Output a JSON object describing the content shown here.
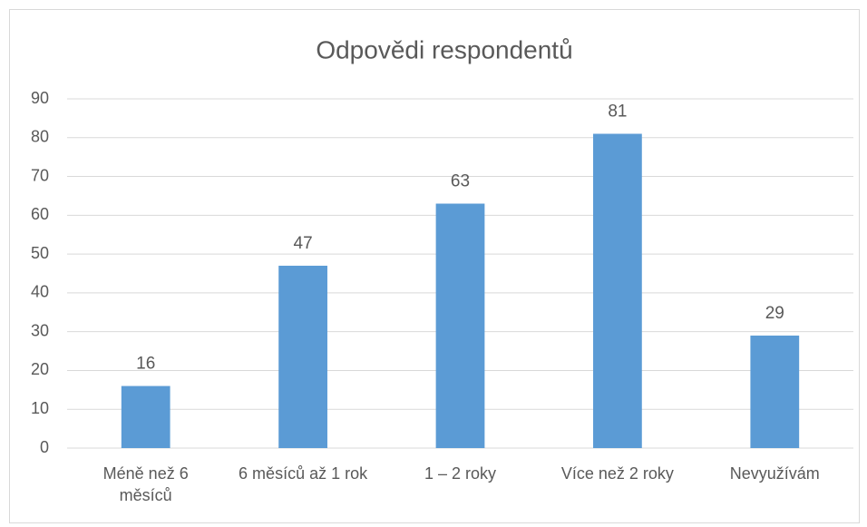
{
  "chart_data": {
    "type": "bar",
    "title": "Odpovědi respondentů",
    "categories": [
      "Méně než 6 měsíců",
      "6 měsíců až 1 rok",
      "1 – 2 roky",
      "Více než 2 roky",
      "Nevyužívám"
    ],
    "values": [
      16,
      47,
      63,
      81,
      29
    ],
    "color": "#5b9bd5",
    "ylim": [
      0,
      90
    ],
    "yticks": [
      0,
      10,
      20,
      30,
      40,
      50,
      60,
      70,
      80,
      90
    ],
    "grid": true
  }
}
